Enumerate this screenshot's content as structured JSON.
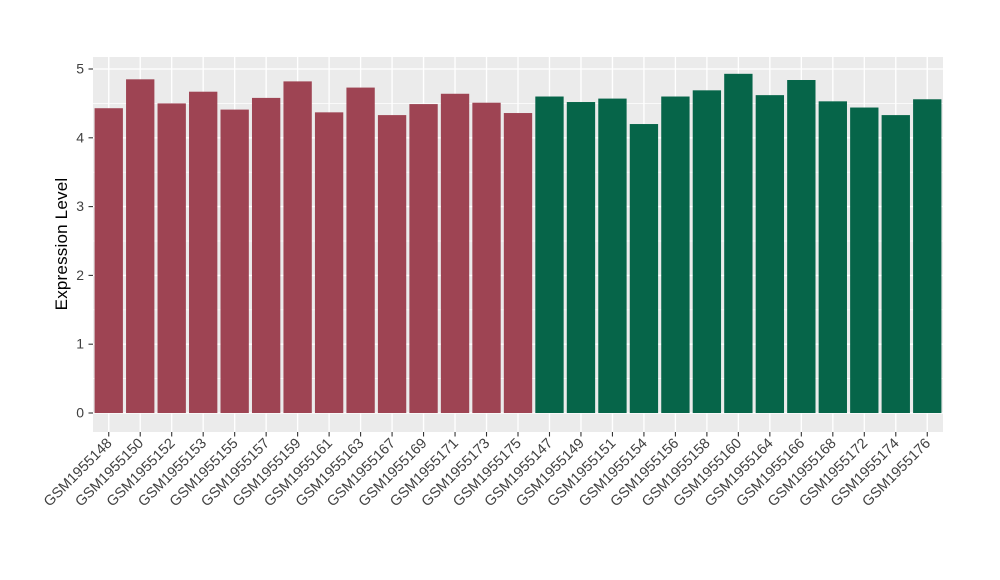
{
  "chart_data": {
    "type": "bar",
    "title": "",
    "xlabel": "",
    "ylabel": "Expression Level",
    "yticks": [
      "0",
      "1",
      "2",
      "3",
      "4",
      "5"
    ],
    "ylim": [
      0,
      5
    ],
    "grid": true,
    "legend_position": "none",
    "panel_bg": "#EBEBEB",
    "grid_color": "#FFFFFF",
    "tick_color": "#333333",
    "axis_text_color": "#404040",
    "series": [
      {
        "name": "group-left-red",
        "color": "#9E4453",
        "points": [
          {
            "label": "GSM1955148",
            "value": 4.43
          },
          {
            "label": "GSM1955150",
            "value": 4.85
          },
          {
            "label": "GSM1955152",
            "value": 4.5
          },
          {
            "label": "GSM1955153",
            "value": 4.67
          },
          {
            "label": "GSM1955155",
            "value": 4.41
          },
          {
            "label": "GSM1955157",
            "value": 4.58
          },
          {
            "label": "GSM1955159",
            "value": 4.82
          },
          {
            "label": "GSM1955161",
            "value": 4.37
          },
          {
            "label": "GSM1955163",
            "value": 4.73
          },
          {
            "label": "GSM1955167",
            "value": 4.33
          },
          {
            "label": "GSM1955169",
            "value": 4.49
          },
          {
            "label": "GSM1955171",
            "value": 4.64
          },
          {
            "label": "GSM1955173",
            "value": 4.51
          },
          {
            "label": "GSM1955175",
            "value": 4.36
          }
        ]
      },
      {
        "name": "group-right-green",
        "color": "#066549",
        "points": [
          {
            "label": "GSM1955147",
            "value": 4.6
          },
          {
            "label": "GSM1955149",
            "value": 4.52
          },
          {
            "label": "GSM1955151",
            "value": 4.57
          },
          {
            "label": "GSM1955154",
            "value": 4.2
          },
          {
            "label": "GSM1955156",
            "value": 4.6
          },
          {
            "label": "GSM1955158",
            "value": 4.69
          },
          {
            "label": "GSM1955160",
            "value": 4.93
          },
          {
            "label": "GSM1955164",
            "value": 4.62
          },
          {
            "label": "GSM1955166",
            "value": 4.84
          },
          {
            "label": "GSM1955168",
            "value": 4.53
          },
          {
            "label": "GSM1955172",
            "value": 4.44
          },
          {
            "label": "GSM1955174",
            "value": 4.33
          },
          {
            "label": "GSM1955176",
            "value": 4.56
          }
        ]
      }
    ]
  }
}
